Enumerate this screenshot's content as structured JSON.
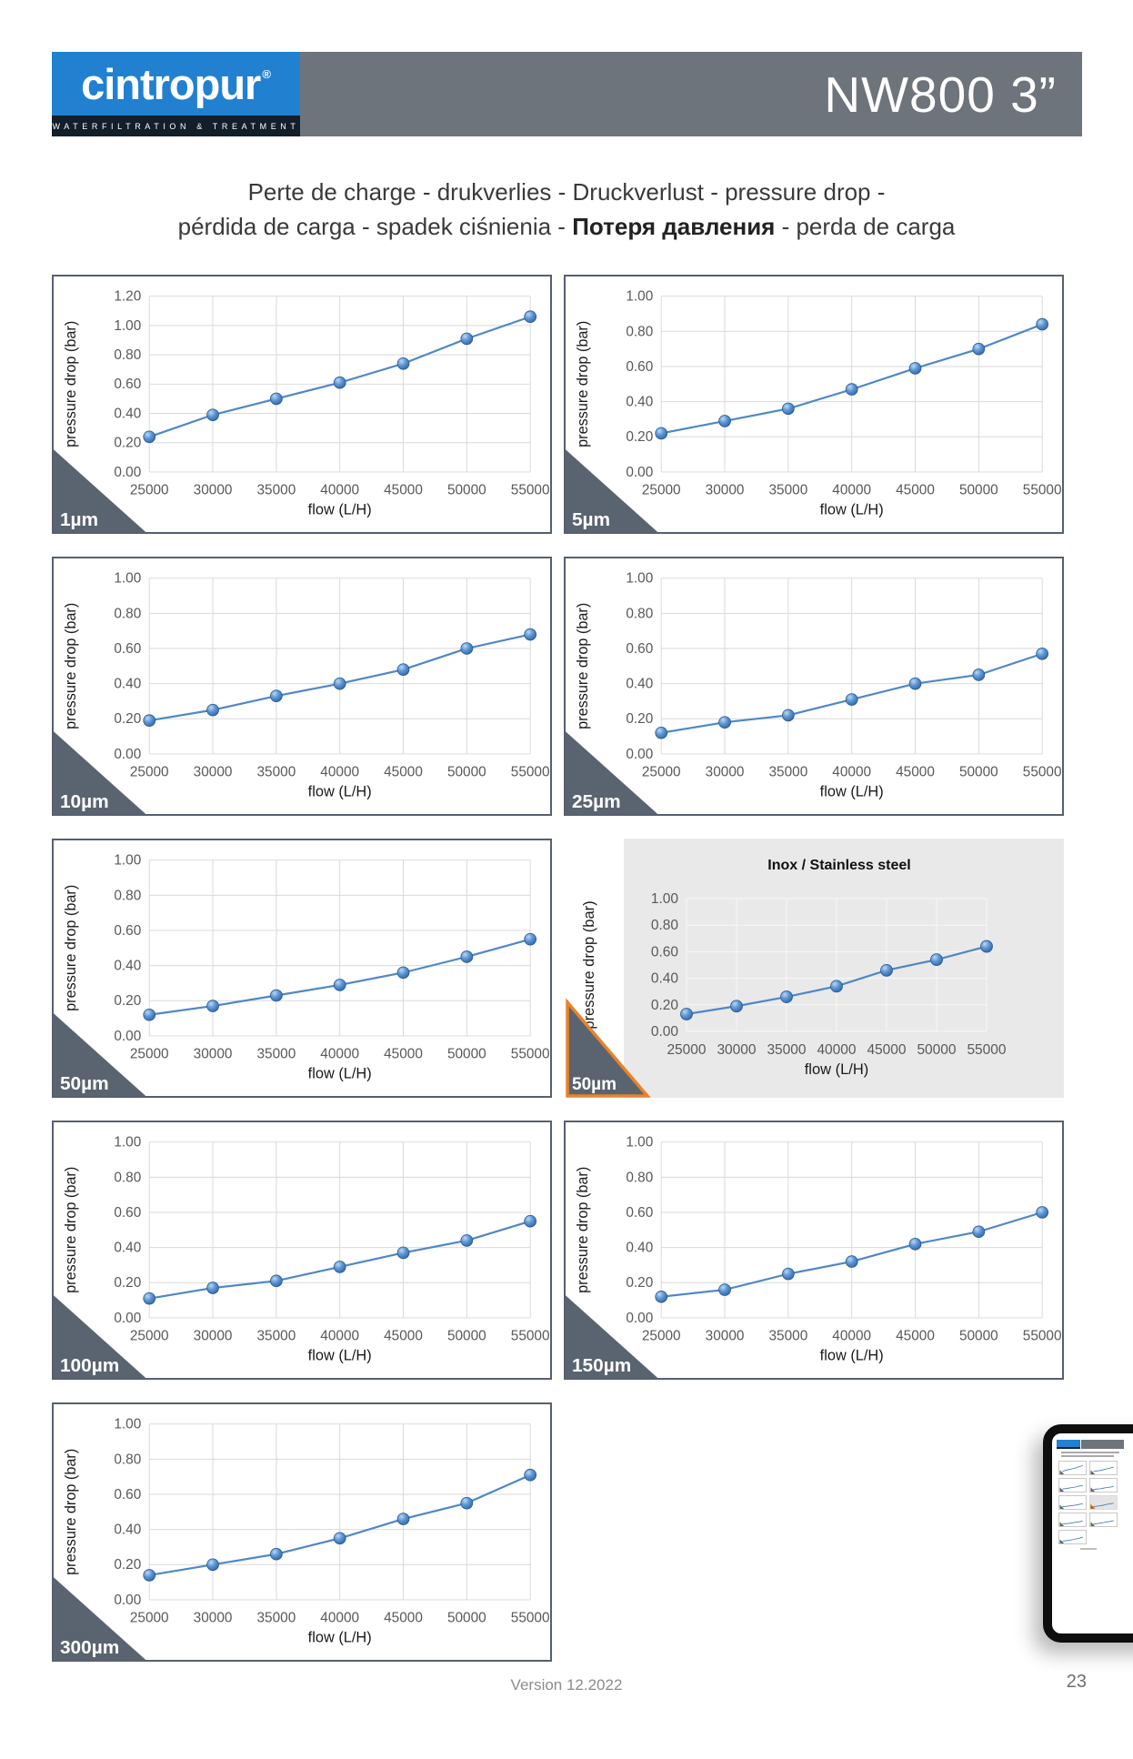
{
  "header": {
    "logo": {
      "brand": "cintropur",
      "registered": "®",
      "tagline": "WATERFILTRATION & TREATMENT"
    },
    "model": "NW800 3”"
  },
  "title": {
    "line1": "Perte de charge - drukverlies - Druckverlust - pressure drop -",
    "line2_pre": "pérdida de carga - spadek ciśnienia - ",
    "line2_bold": "Потеря давления",
    "line2_post": " - perda de carga"
  },
  "footer": {
    "version": "Version 12.2022",
    "page": "23"
  },
  "colors": {
    "logo_blue": "#2181d0",
    "logo_strip_navy": "#121e2a",
    "header_gray": "#6e747b",
    "frame_slate": "#566070",
    "badge_slate": "#5a6470",
    "inox_orange": "#e8832a",
    "inox_panel_gray": "#e9e9e9",
    "grid_gray": "#d9d9d9",
    "grid_on_gray": "#f7f7f7",
    "line_blue": "#4e87c8",
    "marker_edge_blue": "#28598f",
    "tick_gray": "#595959",
    "axis_text": "#1a1a1a"
  },
  "chart_data": [
    {
      "type": "line",
      "badge": "1µm",
      "x": [
        25000,
        30000,
        35000,
        40000,
        45000,
        50000,
        55000
      ],
      "values": [
        0.24,
        0.39,
        0.5,
        0.61,
        0.74,
        0.91,
        1.06
      ],
      "xlabel": "flow (L/H)",
      "ylabel": "pressure drop (bar)",
      "ylim": [
        0,
        1.2
      ],
      "ytick_step": 0.2,
      "grid": true
    },
    {
      "type": "line",
      "badge": "5µm",
      "x": [
        25000,
        30000,
        35000,
        40000,
        45000,
        50000,
        55000
      ],
      "values": [
        0.22,
        0.29,
        0.36,
        0.47,
        0.59,
        0.7,
        0.84
      ],
      "xlabel": "flow (L/H)",
      "ylabel": "pressure drop (bar)",
      "ylim": [
        0,
        1.0
      ],
      "ytick_step": 0.2,
      "grid": true
    },
    {
      "type": "line",
      "badge": "10µm",
      "x": [
        25000,
        30000,
        35000,
        40000,
        45000,
        50000,
        55000
      ],
      "values": [
        0.19,
        0.25,
        0.33,
        0.4,
        0.48,
        0.6,
        0.68
      ],
      "xlabel": "flow (L/H)",
      "ylabel": "pressure drop (bar)",
      "ylim": [
        0,
        1.0
      ],
      "ytick_step": 0.2,
      "grid": true
    },
    {
      "type": "line",
      "badge": "25µm",
      "x": [
        25000,
        30000,
        35000,
        40000,
        45000,
        50000,
        55000
      ],
      "values": [
        0.12,
        0.18,
        0.22,
        0.31,
        0.4,
        0.45,
        0.57
      ],
      "xlabel": "flow (L/H)",
      "ylabel": "pressure drop (bar)",
      "ylim": [
        0,
        1.0
      ],
      "ytick_step": 0.2,
      "grid": true
    },
    {
      "type": "line",
      "badge": "50µm",
      "x": [
        25000,
        30000,
        35000,
        40000,
        45000,
        50000,
        55000
      ],
      "values": [
        0.12,
        0.17,
        0.23,
        0.29,
        0.36,
        0.45,
        0.55
      ],
      "xlabel": "flow (L/H)",
      "ylabel": "pressure drop (bar)",
      "ylim": [
        0,
        1.0
      ],
      "ytick_step": 0.2,
      "grid": true
    },
    {
      "type": "line",
      "badge": "50µm",
      "variant": "inox",
      "title": "Inox / Stainless steel",
      "x": [
        25000,
        30000,
        35000,
        40000,
        45000,
        50000,
        55000
      ],
      "values": [
        0.13,
        0.19,
        0.26,
        0.34,
        0.46,
        0.54,
        0.64
      ],
      "xlabel": "flow (L/H)",
      "ylabel": "pressure drop (bar)",
      "ylim": [
        0,
        1.0
      ],
      "ytick_step": 0.2,
      "grid": true
    },
    {
      "type": "line",
      "badge": "100µm",
      "x": [
        25000,
        30000,
        35000,
        40000,
        45000,
        50000,
        55000
      ],
      "values": [
        0.11,
        0.17,
        0.21,
        0.29,
        0.37,
        0.44,
        0.55
      ],
      "xlabel": "flow (L/H)",
      "ylabel": "pressure drop (bar)",
      "ylim": [
        0,
        1.0
      ],
      "ytick_step": 0.2,
      "grid": true
    },
    {
      "type": "line",
      "badge": "150µm",
      "x": [
        25000,
        30000,
        35000,
        40000,
        45000,
        50000,
        55000
      ],
      "values": [
        0.12,
        0.16,
        0.25,
        0.32,
        0.42,
        0.49,
        0.6
      ],
      "xlabel": "flow (L/H)",
      "ylabel": "pressure drop (bar)",
      "ylim": [
        0,
        1.0
      ],
      "ytick_step": 0.2,
      "grid": true
    },
    {
      "type": "line",
      "badge": "300µm",
      "x": [
        25000,
        30000,
        35000,
        40000,
        45000,
        50000,
        55000
      ],
      "values": [
        0.14,
        0.2,
        0.26,
        0.35,
        0.46,
        0.55,
        0.71
      ],
      "xlabel": "flow (L/H)",
      "ylabel": "pressure drop (bar)",
      "ylim": [
        0,
        1.0
      ],
      "ytick_step": 0.2,
      "grid": true
    }
  ]
}
